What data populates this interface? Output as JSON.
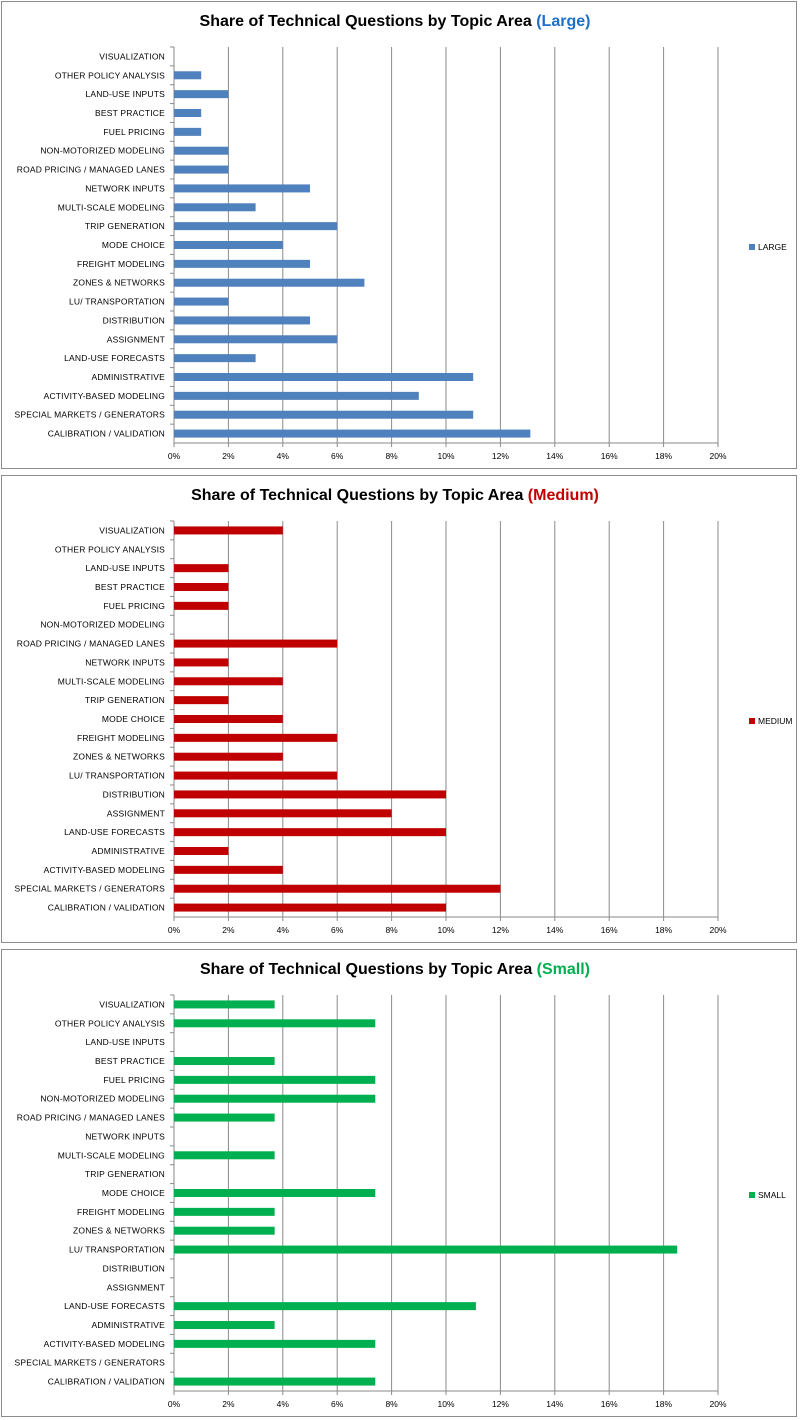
{
  "chart_data": [
    {
      "type": "bar",
      "orientation": "horizontal",
      "title": "Share of Technical Questions by Topic Area",
      "title_suffix": "(Large)",
      "title_suffix_color": "#1F6FC5",
      "color": "#4F81BD",
      "legend": "LARGE",
      "legend_position": "right",
      "grid": true,
      "xlim": [
        0,
        20
      ],
      "x_ticks": [
        "0%",
        "2%",
        "4%",
        "6%",
        "8%",
        "10%",
        "12%",
        "14%",
        "16%",
        "18%",
        "20%"
      ],
      "categories": [
        "VISUALIZATION",
        "OTHER POLICY ANALYSIS",
        "LAND-USE INPUTS",
        "BEST PRACTICE",
        "FUEL PRICING",
        "NON-MOTORIZED MODELING",
        "ROAD PRICING / MANAGED LANES",
        "NETWORK INPUTS",
        "MULTI-SCALE MODELING",
        "TRIP GENERATION",
        "MODE CHOICE",
        "FREIGHT MODELING",
        "ZONES & NETWORKS",
        "LU/ TRANSPORTATION",
        "DISTRIBUTION",
        "ASSIGNMENT",
        "LAND-USE FORECASTS",
        "ADMINISTRATIVE",
        "ACTIVITY-BASED MODELING",
        "SPECIAL MARKETS / GENERATORS",
        "CALIBRATION / VALIDATION"
      ],
      "values": [
        0,
        1,
        2,
        1,
        1,
        2,
        2,
        5,
        3,
        6,
        4,
        5,
        7,
        2,
        5,
        6,
        3,
        11,
        9,
        11,
        13.1
      ]
    },
    {
      "type": "bar",
      "orientation": "horizontal",
      "title": "Share of Technical Questions by Topic Area",
      "title_suffix": "(Medium)",
      "title_suffix_color": "#C00000",
      "color": "#C00000",
      "legend": "MEDIUM",
      "legend_position": "right",
      "grid": true,
      "xlim": [
        0,
        20
      ],
      "x_ticks": [
        "0%",
        "2%",
        "4%",
        "6%",
        "8%",
        "10%",
        "12%",
        "14%",
        "16%",
        "18%",
        "20%"
      ],
      "categories": [
        "VISUALIZATION",
        "OTHER POLICY ANALYSIS",
        "LAND-USE INPUTS",
        "BEST PRACTICE",
        "FUEL PRICING",
        "NON-MOTORIZED MODELING",
        "ROAD PRICING / MANAGED LANES",
        "NETWORK INPUTS",
        "MULTI-SCALE MODELING",
        "TRIP GENERATION",
        "MODE CHOICE",
        "FREIGHT MODELING",
        "ZONES & NETWORKS",
        "LU/ TRANSPORTATION",
        "DISTRIBUTION",
        "ASSIGNMENT",
        "LAND-USE FORECASTS",
        "ADMINISTRATIVE",
        "ACTIVITY-BASED MODELING",
        "SPECIAL MARKETS / GENERATORS",
        "CALIBRATION / VALIDATION"
      ],
      "values": [
        4,
        0,
        2,
        2,
        2,
        0,
        6,
        2,
        4,
        2,
        4,
        6,
        4,
        6,
        10,
        8,
        10,
        2,
        4,
        12,
        10
      ]
    },
    {
      "type": "bar",
      "orientation": "horizontal",
      "title": "Share of Technical Questions by Topic Area",
      "title_suffix": "(Small)",
      "title_suffix_color": "#00B050",
      "color": "#00B050",
      "legend": "SMALL",
      "legend_position": "right",
      "grid": true,
      "xlim": [
        0,
        20
      ],
      "x_ticks": [
        "0%",
        "2%",
        "4%",
        "6%",
        "8%",
        "10%",
        "12%",
        "14%",
        "16%",
        "18%",
        "20%"
      ],
      "categories": [
        "VISUALIZATION",
        "OTHER POLICY ANALYSIS",
        "LAND-USE INPUTS",
        "BEST PRACTICE",
        "FUEL PRICING",
        "NON-MOTORIZED MODELING",
        "ROAD PRICING / MANAGED LANES",
        "NETWORK INPUTS",
        "MULTI-SCALE MODELING",
        "TRIP GENERATION",
        "MODE CHOICE",
        "FREIGHT MODELING",
        "ZONES & NETWORKS",
        "LU/ TRANSPORTATION",
        "DISTRIBUTION",
        "ASSIGNMENT",
        "LAND-USE FORECASTS",
        "ADMINISTRATIVE",
        "ACTIVITY-BASED MODELING",
        "SPECIAL MARKETS / GENERATORS",
        "CALIBRATION / VALIDATION"
      ],
      "values": [
        3.7,
        7.4,
        0,
        3.7,
        7.4,
        7.4,
        3.7,
        0,
        3.7,
        0,
        7.4,
        3.7,
        3.7,
        18.5,
        0,
        0,
        11.1,
        3.7,
        7.4,
        0,
        7.4
      ]
    }
  ]
}
